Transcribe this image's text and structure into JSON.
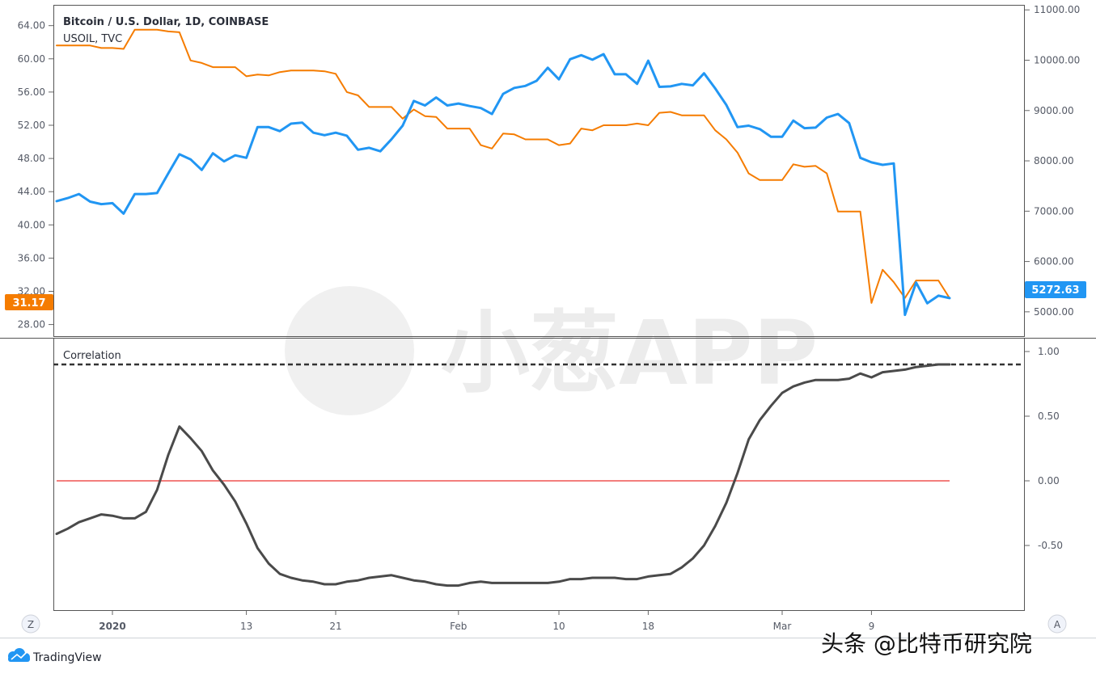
{
  "header": {
    "series_title": "Bitcoin / U.S. Dollar, 1D, COINBASE",
    "overlay_title": "USOIL, TVC",
    "indicator_title": "Correlation"
  },
  "badges": {
    "btc_last": "5272.63",
    "oil_last": "31.17",
    "btc_color": "#2196f3",
    "oil_color": "#f57c00"
  },
  "footer": {
    "z_button": "Z",
    "a_button": "A",
    "brand": "TradingView",
    "watermark_app": "小葱APP",
    "source_credit": "头条 @比特币研究院"
  },
  "chart_data": [
    {
      "type": "line",
      "panel": "price",
      "x_tick_labels": [
        "2020",
        "13",
        "21",
        "Feb",
        "10",
        "18",
        "Mar",
        "9"
      ],
      "left_axis": {
        "ticks": [
          "28.00",
          "32.00",
          "36.00",
          "40.00",
          "44.00",
          "48.00",
          "52.00",
          "56.00",
          "60.00",
          "64.00"
        ],
        "ylim": [
          26.5,
          66.5
        ]
      },
      "right_axis": {
        "ticks": [
          "5000.00",
          "6000.00",
          "7000.00",
          "8000.00",
          "9000.00",
          "10000.00",
          "11000.00"
        ],
        "ylim": [
          4500,
          11100
        ]
      },
      "series": [
        {
          "name": "Bitcoin / U.S. Dollar, 1D, COINBASE",
          "axis": "right",
          "color": "#2196f3",
          "values": [
            7200,
            7260,
            7340,
            7190,
            7140,
            7160,
            6950,
            7340,
            7340,
            7360,
            7750,
            8130,
            8030,
            7820,
            8150,
            7990,
            8110,
            8060,
            8670,
            8670,
            8590,
            8740,
            8760,
            8560,
            8510,
            8560,
            8500,
            8220,
            8260,
            8190,
            8430,
            8700,
            9190,
            9100,
            9260,
            9100,
            9140,
            9090,
            9050,
            8930,
            9330,
            9450,
            9490,
            9590,
            9850,
            9620,
            10020,
            10100,
            10010,
            10120,
            9720,
            9720,
            9530,
            9990,
            9470,
            9480,
            9530,
            9500,
            9740,
            9440,
            9110,
            8670,
            8700,
            8630,
            8480,
            8480,
            8800,
            8650,
            8660,
            8860,
            8930,
            8750,
            8060,
            7970,
            7920,
            7950,
            4940,
            5580,
            5170,
            5320,
            5272.63
          ]
        },
        {
          "name": "USOIL, TVC",
          "axis": "left",
          "color": "#f57c00",
          "values": [
            61.6,
            61.6,
            61.6,
            61.6,
            61.3,
            61.3,
            61.2,
            63.5,
            63.5,
            63.5,
            63.3,
            63.2,
            59.8,
            59.5,
            59.0,
            59.0,
            59.0,
            57.9,
            58.1,
            58.0,
            58.4,
            58.6,
            58.6,
            58.6,
            58.5,
            58.2,
            56.0,
            55.6,
            54.2,
            54.2,
            54.2,
            52.8,
            53.9,
            53.1,
            53.0,
            51.6,
            51.6,
            51.6,
            49.6,
            49.2,
            51.0,
            50.9,
            50.3,
            50.3,
            50.3,
            49.6,
            49.8,
            51.6,
            51.4,
            52.0,
            52.0,
            52.0,
            52.2,
            52.0,
            53.5,
            53.6,
            53.2,
            53.2,
            53.2,
            51.4,
            50.3,
            48.7,
            46.2,
            45.4,
            45.4,
            45.4,
            47.3,
            47.0,
            47.1,
            46.2,
            41.6,
            41.6,
            41.6,
            30.6,
            34.6,
            33.1,
            31.2,
            33.3,
            33.3,
            33.3,
            31.17
          ]
        }
      ]
    },
    {
      "type": "line",
      "panel": "indicator",
      "title": "Correlation",
      "right_axis": {
        "ticks": [
          "-0.50",
          "0.00",
          "0.50",
          "1.00"
        ],
        "ylim": [
          -1.0,
          1.1
        ]
      },
      "reference_lines": [
        {
          "value": 0.0,
          "style": "solid",
          "color": "#ef5350"
        },
        {
          "value": 0.9,
          "style": "dashed",
          "color": "#333333"
        }
      ],
      "series": [
        {
          "name": "Correlation",
          "color": "#4a4a4a",
          "values": [
            -0.41,
            -0.37,
            -0.32,
            -0.29,
            -0.26,
            -0.27,
            -0.29,
            -0.29,
            -0.24,
            -0.07,
            0.2,
            0.42,
            0.33,
            0.23,
            0.08,
            -0.03,
            -0.16,
            -0.33,
            -0.52,
            -0.64,
            -0.72,
            -0.75,
            -0.77,
            -0.78,
            -0.8,
            -0.8,
            -0.78,
            -0.77,
            -0.75,
            -0.74,
            -0.73,
            -0.75,
            -0.77,
            -0.78,
            -0.8,
            -0.81,
            -0.81,
            -0.79,
            -0.78,
            -0.79,
            -0.79,
            -0.79,
            -0.79,
            -0.79,
            -0.79,
            -0.78,
            -0.76,
            -0.76,
            -0.75,
            -0.75,
            -0.75,
            -0.76,
            -0.76,
            -0.74,
            -0.73,
            -0.72,
            -0.67,
            -0.6,
            -0.5,
            -0.35,
            -0.17,
            0.06,
            0.32,
            0.47,
            0.58,
            0.68,
            0.73,
            0.76,
            0.78,
            0.78,
            0.78,
            0.79,
            0.83,
            0.8,
            0.84,
            0.85,
            0.86,
            0.88,
            0.89,
            0.9,
            0.9
          ]
        }
      ]
    }
  ]
}
